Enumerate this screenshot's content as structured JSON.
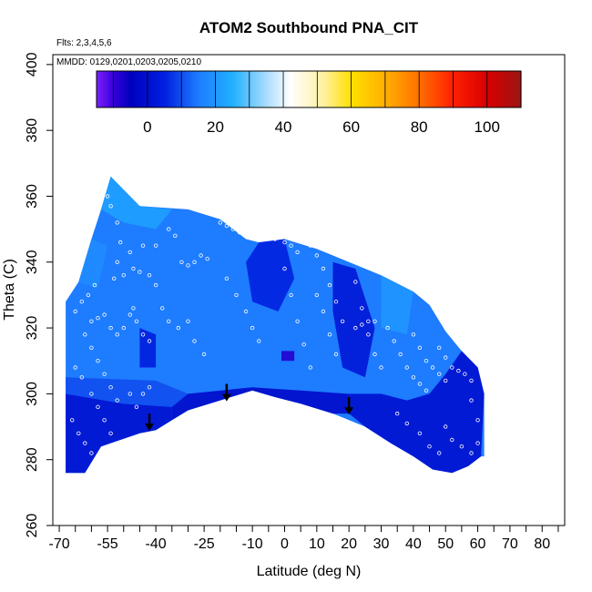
{
  "chart_data": {
    "type": "heatmap",
    "title": "ATOM2 Southbound PNA_CIT",
    "annotation_flights": "Flts: 2,3,4,5,6",
    "annotation_dates": "MMDD: 0129,0201,0203,0205,0210",
    "xlabel": "Latitude (deg N)",
    "ylabel": "Theta (C)",
    "xlim": [
      -72,
      87
    ],
    "ylim": [
      260,
      403
    ],
    "x_ticks": [
      -70,
      -55,
      -40,
      -25,
      -10,
      0,
      10,
      20,
      30,
      40,
      50,
      60,
      70,
      80
    ],
    "x_tick_labels": [
      "-70",
      "-55",
      "-40",
      "-25",
      "-10",
      "0",
      "10",
      "20",
      "30",
      "40",
      "50",
      "60",
      "70",
      "80"
    ],
    "x_minor_ticks": [
      -65,
      -60,
      -50,
      -45,
      -35,
      -30,
      -20,
      -15,
      -5,
      5,
      15,
      25,
      35,
      45,
      55,
      65,
      75,
      85
    ],
    "y_ticks": [
      260,
      280,
      300,
      320,
      340,
      360,
      380,
      400
    ],
    "y_tick_labels": [
      "260",
      "280",
      "300",
      "320",
      "340",
      "360",
      "380",
      "400"
    ],
    "colorbar": {
      "range": [
        -15,
        110
      ],
      "ticks": [
        0,
        20,
        40,
        60,
        80,
        100
      ],
      "tick_labels": [
        "0",
        "20",
        "40",
        "60",
        "80",
        "100"
      ],
      "separators": [
        -10,
        0,
        10,
        20,
        30,
        40,
        50,
        60,
        70,
        80,
        90,
        100
      ],
      "stops": [
        {
          "value": -15,
          "color": "#7b20ff"
        },
        {
          "value": -10,
          "color": "#3a00d8"
        },
        {
          "value": -5,
          "color": "#0000c0"
        },
        {
          "value": 5,
          "color": "#0020e0"
        },
        {
          "value": 15,
          "color": "#1e7cff"
        },
        {
          "value": 25,
          "color": "#20b0ff"
        },
        {
          "value": 35,
          "color": "#a8dcff"
        },
        {
          "value": 42,
          "color": "#ffffff"
        },
        {
          "value": 52,
          "color": "#fff0a0"
        },
        {
          "value": 60,
          "color": "#ffe000"
        },
        {
          "value": 70,
          "color": "#ffb000"
        },
        {
          "value": 80,
          "color": "#ff7000"
        },
        {
          "value": 90,
          "color": "#ff2000"
        },
        {
          "value": 100,
          "color": "#d80000"
        },
        {
          "value": 110,
          "color": "#9c1414"
        }
      ]
    },
    "field_boundary": {
      "lower": [
        [
          -68,
          276
        ],
        [
          -62,
          276
        ],
        [
          -57,
          284
        ],
        [
          -45,
          288
        ],
        [
          -40,
          289
        ],
        [
          -30,
          295
        ],
        [
          -20,
          298
        ],
        [
          -10,
          301
        ],
        [
          -3,
          299
        ],
        [
          5,
          297
        ],
        [
          15,
          294
        ],
        [
          25,
          290
        ],
        [
          33,
          285
        ],
        [
          40,
          281
        ],
        [
          46,
          277
        ],
        [
          52,
          276
        ],
        [
          57,
          278
        ],
        [
          61,
          281
        ]
      ],
      "upper": [
        [
          -68,
          328
        ],
        [
          -64,
          334
        ],
        [
          -60,
          347
        ],
        [
          -57,
          356
        ],
        [
          -54,
          366
        ],
        [
          -45,
          357
        ],
        [
          -30,
          356
        ],
        [
          -20,
          353
        ],
        [
          -12,
          347
        ],
        [
          -8,
          346
        ],
        [
          0,
          347
        ],
        [
          10,
          344
        ],
        [
          20,
          340
        ],
        [
          30,
          336
        ],
        [
          40,
          331
        ],
        [
          45,
          327
        ],
        [
          50,
          319
        ],
        [
          55,
          313
        ],
        [
          60,
          308
        ],
        [
          62,
          300
        ],
        [
          62,
          281
        ]
      ]
    },
    "field_mean_value": 15,
    "regions": [
      {
        "name": "south-lower-dark",
        "value": 0,
        "points": [
          [
            -68,
            276
          ],
          [
            -62,
            276
          ],
          [
            -57,
            284
          ],
          [
            -45,
            288
          ],
          [
            -40,
            289
          ],
          [
            -35,
            292
          ],
          [
            -35,
            296
          ],
          [
            -50,
            297
          ],
          [
            -68,
            300
          ]
        ]
      },
      {
        "name": "south-mid",
        "value": 10,
        "points": [
          [
            -68,
            300
          ],
          [
            -50,
            297
          ],
          [
            -35,
            296
          ],
          [
            -30,
            300
          ],
          [
            -40,
            304
          ],
          [
            -68,
            305
          ]
        ]
      },
      {
        "name": "center-base-dark",
        "value": -2,
        "points": [
          [
            -35,
            292
          ],
          [
            -30,
            295
          ],
          [
            -20,
            298
          ],
          [
            -10,
            301
          ],
          [
            -3,
            299
          ],
          [
            5,
            297
          ],
          [
            15,
            294
          ],
          [
            20,
            294
          ],
          [
            20,
            300
          ],
          [
            5,
            301
          ],
          [
            -10,
            302
          ],
          [
            -30,
            300
          ],
          [
            -35,
            296
          ]
        ]
      },
      {
        "name": "south-upper-light",
        "value": 22,
        "points": [
          [
            -54,
            366
          ],
          [
            -45,
            357
          ],
          [
            -35,
            356
          ],
          [
            -40,
            350
          ],
          [
            -50,
            352
          ],
          [
            -57,
            356
          ]
        ]
      },
      {
        "name": "north-lower-dark",
        "value": 0,
        "points": [
          [
            20,
            294
          ],
          [
            25,
            290
          ],
          [
            33,
            285
          ],
          [
            40,
            281
          ],
          [
            46,
            277
          ],
          [
            52,
            276
          ],
          [
            57,
            278
          ],
          [
            61,
            281
          ],
          [
            62,
            300
          ],
          [
            60,
            308
          ],
          [
            55,
            313
          ],
          [
            50,
            306
          ],
          [
            45,
            300
          ],
          [
            38,
            298
          ],
          [
            30,
            300
          ],
          [
            20,
            300
          ]
        ]
      },
      {
        "name": "north-upper-dark",
        "value": 2,
        "points": [
          [
            15,
            340
          ],
          [
            22,
            338
          ],
          [
            28,
            320
          ],
          [
            25,
            305
          ],
          [
            18,
            308
          ],
          [
            15,
            325
          ]
        ]
      },
      {
        "name": "center-mid-dark",
        "value": 5,
        "points": [
          [
            -8,
            346
          ],
          [
            0,
            347
          ],
          [
            3,
            335
          ],
          [
            -2,
            325
          ],
          [
            -10,
            328
          ],
          [
            -12,
            340
          ]
        ]
      },
      {
        "name": "right-patch-light",
        "value": 20,
        "points": [
          [
            30,
            336
          ],
          [
            40,
            331
          ],
          [
            38,
            318
          ],
          [
            30,
            320
          ]
        ]
      },
      {
        "name": "upper-left-light",
        "value": 18,
        "points": [
          [
            -64,
            334
          ],
          [
            -60,
            347
          ],
          [
            -55,
            345
          ],
          [
            -58,
            332
          ]
        ]
      },
      {
        "name": "small-purple",
        "value": -8,
        "points": [
          [
            -1,
            313
          ],
          [
            3,
            313
          ],
          [
            3,
            310
          ],
          [
            -1,
            310
          ]
        ]
      },
      {
        "name": "south-gap-dark",
        "value": 4,
        "points": [
          [
            -45,
            320
          ],
          [
            -40,
            318
          ],
          [
            -40,
            308
          ],
          [
            -45,
            308
          ]
        ]
      }
    ],
    "track_points": [
      [
        -55,
        360
      ],
      [
        -54,
        357
      ],
      [
        -52,
        352
      ],
      [
        -51,
        346
      ],
      [
        -52,
        340
      ],
      [
        -53,
        335
      ],
      [
        -50,
        336
      ],
      [
        -47,
        338
      ],
      [
        -45,
        337
      ],
      [
        -42,
        336
      ],
      [
        -40,
        333
      ],
      [
        -60,
        322
      ],
      [
        -58,
        323
      ],
      [
        -56,
        324
      ],
      [
        -54,
        320
      ],
      [
        -52,
        318
      ],
      [
        -50,
        320
      ],
      [
        -48,
        324
      ],
      [
        -47,
        326
      ],
      [
        -46,
        322
      ],
      [
        -44,
        318
      ],
      [
        -42,
        316
      ],
      [
        -38,
        326
      ],
      [
        -36,
        322
      ],
      [
        -33,
        320
      ],
      [
        -30,
        322
      ],
      [
        -28,
        316
      ],
      [
        -25,
        312
      ],
      [
        -32,
        340
      ],
      [
        -30,
        339
      ],
      [
        -28,
        340
      ],
      [
        -26,
        342
      ],
      [
        -24,
        341
      ],
      [
        -20,
        352
      ],
      [
        -18,
        351
      ],
      [
        -16,
        350
      ],
      [
        -14,
        349
      ],
      [
        -12,
        350
      ],
      [
        -18,
        335
      ],
      [
        -15,
        330
      ],
      [
        -12,
        325
      ],
      [
        -10,
        320
      ],
      [
        -8,
        316
      ],
      [
        -5,
        348
      ],
      [
        -3,
        347
      ],
      [
        0,
        346
      ],
      [
        2,
        345
      ],
      [
        4,
        343
      ],
      [
        0,
        338
      ],
      [
        2,
        330
      ],
      [
        4,
        322
      ],
      [
        6,
        315
      ],
      [
        8,
        308
      ],
      [
        8,
        345
      ],
      [
        10,
        342
      ],
      [
        12,
        338
      ],
      [
        14,
        333
      ],
      [
        16,
        328
      ],
      [
        18,
        322
      ],
      [
        20,
        342
      ],
      [
        22,
        334
      ],
      [
        24,
        326
      ],
      [
        26,
        318
      ],
      [
        28,
        312
      ],
      [
        30,
        308
      ],
      [
        22,
        320
      ],
      [
        24,
        321
      ],
      [
        26,
        322
      ],
      [
        28,
        322
      ],
      [
        32,
        320
      ],
      [
        34,
        316
      ],
      [
        36,
        312
      ],
      [
        38,
        308
      ],
      [
        40,
        305
      ],
      [
        42,
        303
      ],
      [
        44,
        301
      ],
      [
        40,
        318
      ],
      [
        42,
        314
      ],
      [
        44,
        310
      ],
      [
        46,
        308
      ],
      [
        48,
        306
      ],
      [
        50,
        304
      ],
      [
        48,
        314
      ],
      [
        50,
        311
      ],
      [
        52,
        308
      ],
      [
        54,
        307
      ],
      [
        56,
        306
      ],
      [
        58,
        304
      ],
      [
        -62,
        318
      ],
      [
        -60,
        314
      ],
      [
        -58,
        310
      ],
      [
        -56,
        306
      ],
      [
        -54,
        302
      ],
      [
        -52,
        298
      ],
      [
        -65,
        308
      ],
      [
        -63,
        305
      ],
      [
        -60,
        300
      ],
      [
        -58,
        296
      ],
      [
        -56,
        292
      ],
      [
        -54,
        288
      ],
      [
        -66,
        292
      ],
      [
        -64,
        288
      ],
      [
        -62,
        285
      ],
      [
        -60,
        282
      ],
      [
        -58,
        280
      ],
      [
        -48,
        300
      ],
      [
        -46,
        296
      ],
      [
        -44,
        300
      ],
      [
        -42,
        302
      ],
      [
        50,
        290
      ],
      [
        52,
        286
      ],
      [
        55,
        284
      ],
      [
        58,
        282
      ],
      [
        60,
        285
      ],
      [
        60,
        292
      ],
      [
        58,
        298
      ],
      [
        35,
        294
      ],
      [
        38,
        291
      ],
      [
        42,
        288
      ],
      [
        45,
        284
      ],
      [
        48,
        282
      ],
      [
        -36,
        350
      ],
      [
        -34,
        348
      ],
      [
        -40,
        345
      ],
      [
        -44,
        345
      ],
      [
        -48,
        343
      ],
      [
        10,
        330
      ],
      [
        12,
        325
      ],
      [
        14,
        318
      ],
      [
        16,
        312
      ],
      [
        -65,
        325
      ],
      [
        -63,
        328
      ],
      [
        -61,
        330
      ],
      [
        -59,
        333
      ]
    ],
    "arrows": [
      {
        "x": -42,
        "y_start": 294,
        "y_end": 289
      },
      {
        "x": -18,
        "y_start": 303,
        "y_end": 298
      },
      {
        "x": 20,
        "y_start": 299,
        "y_end": 294
      }
    ]
  }
}
